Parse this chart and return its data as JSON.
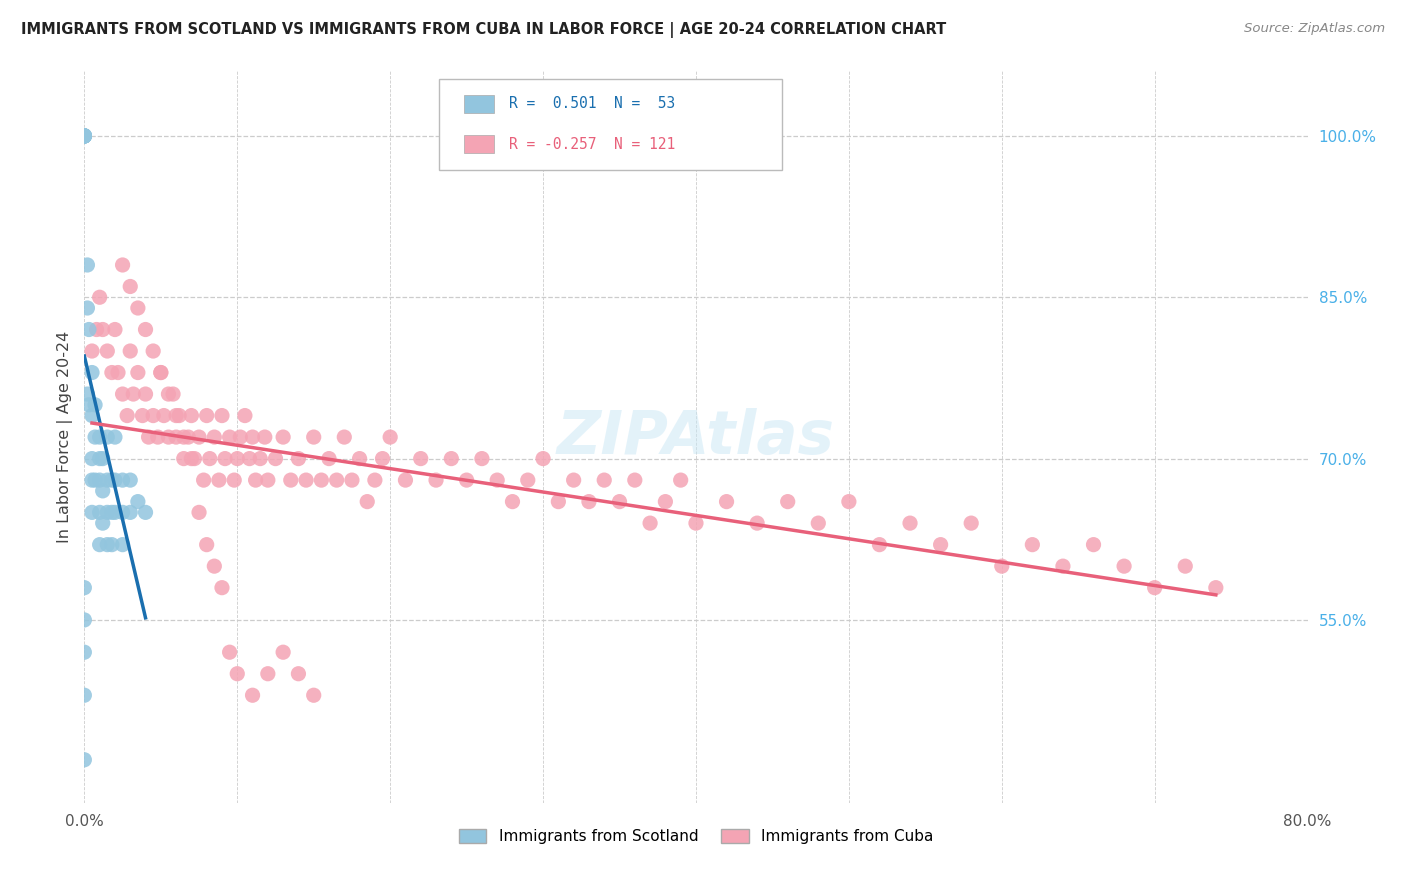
{
  "title": "IMMIGRANTS FROM SCOTLAND VS IMMIGRANTS FROM CUBA IN LABOR FORCE | AGE 20-24 CORRELATION CHART",
  "source": "Source: ZipAtlas.com",
  "ylabel": "In Labor Force | Age 20-24",
  "legend_label1": "Immigrants from Scotland",
  "legend_label2": "Immigrants from Cuba",
  "R1": 0.501,
  "N1": 53,
  "R2": -0.257,
  "N2": 121,
  "scotland_color": "#92c5de",
  "cuba_color": "#f4a4b4",
  "scotland_line_color": "#1a6faf",
  "cuba_line_color": "#e8607a",
  "right_tick_color": "#4ab0e8",
  "xlim": [
    0.0,
    0.8
  ],
  "ylim": [
    0.38,
    1.06
  ],
  "yticks": [
    1.0,
    0.85,
    0.7,
    0.55
  ],
  "ytick_labels": [
    "100.0%",
    "85.0%",
    "70.0%",
    "55.0%"
  ],
  "xticks": [
    0.0,
    0.8
  ],
  "xtick_labels": [
    "0.0%",
    "80.0%"
  ],
  "scotland_x": [
    0.0,
    0.0,
    0.0,
    0.0,
    0.0,
    0.0,
    0.0,
    0.0,
    0.0,
    0.0,
    0.002,
    0.002,
    0.002,
    0.003,
    0.003,
    0.005,
    0.005,
    0.005,
    0.005,
    0.005,
    0.007,
    0.007,
    0.007,
    0.01,
    0.01,
    0.01,
    0.01,
    0.01,
    0.012,
    0.012,
    0.012,
    0.015,
    0.015,
    0.015,
    0.015,
    0.018,
    0.018,
    0.018,
    0.02,
    0.02,
    0.02,
    0.025,
    0.025,
    0.025,
    0.03,
    0.03,
    0.035,
    0.04,
    0.0,
    0.0,
    0.0,
    0.0,
    0.0
  ],
  "scotland_y": [
    1.0,
    1.0,
    1.0,
    1.0,
    1.0,
    1.0,
    1.0,
    1.0,
    1.0,
    1.0,
    0.88,
    0.84,
    0.76,
    0.82,
    0.75,
    0.78,
    0.74,
    0.7,
    0.68,
    0.65,
    0.75,
    0.72,
    0.68,
    0.72,
    0.7,
    0.68,
    0.65,
    0.62,
    0.7,
    0.67,
    0.64,
    0.72,
    0.68,
    0.65,
    0.62,
    0.68,
    0.65,
    0.62,
    0.72,
    0.68,
    0.65,
    0.68,
    0.65,
    0.62,
    0.68,
    0.65,
    0.66,
    0.65,
    0.58,
    0.55,
    0.52,
    0.48,
    0.42
  ],
  "cuba_x": [
    0.005,
    0.008,
    0.01,
    0.012,
    0.015,
    0.018,
    0.02,
    0.022,
    0.025,
    0.028,
    0.03,
    0.032,
    0.035,
    0.038,
    0.04,
    0.042,
    0.045,
    0.048,
    0.05,
    0.052,
    0.055,
    0.058,
    0.06,
    0.062,
    0.065,
    0.068,
    0.07,
    0.072,
    0.075,
    0.078,
    0.08,
    0.082,
    0.085,
    0.088,
    0.09,
    0.092,
    0.095,
    0.098,
    0.1,
    0.102,
    0.105,
    0.108,
    0.11,
    0.112,
    0.115,
    0.118,
    0.12,
    0.125,
    0.13,
    0.135,
    0.14,
    0.145,
    0.15,
    0.155,
    0.16,
    0.165,
    0.17,
    0.175,
    0.18,
    0.185,
    0.19,
    0.195,
    0.2,
    0.21,
    0.22,
    0.23,
    0.24,
    0.25,
    0.26,
    0.27,
    0.28,
    0.29,
    0.3,
    0.31,
    0.32,
    0.33,
    0.34,
    0.35,
    0.36,
    0.37,
    0.38,
    0.39,
    0.4,
    0.42,
    0.44,
    0.46,
    0.48,
    0.5,
    0.52,
    0.54,
    0.56,
    0.58,
    0.6,
    0.62,
    0.64,
    0.66,
    0.68,
    0.7,
    0.72,
    0.74,
    0.025,
    0.03,
    0.035,
    0.04,
    0.045,
    0.05,
    0.055,
    0.06,
    0.065,
    0.07,
    0.075,
    0.08,
    0.085,
    0.09,
    0.095,
    0.1,
    0.11,
    0.12,
    0.13,
    0.14,
    0.15
  ],
  "cuba_y": [
    0.8,
    0.82,
    0.85,
    0.82,
    0.8,
    0.78,
    0.82,
    0.78,
    0.76,
    0.74,
    0.8,
    0.76,
    0.78,
    0.74,
    0.76,
    0.72,
    0.74,
    0.72,
    0.78,
    0.74,
    0.72,
    0.76,
    0.72,
    0.74,
    0.7,
    0.72,
    0.74,
    0.7,
    0.72,
    0.68,
    0.74,
    0.7,
    0.72,
    0.68,
    0.74,
    0.7,
    0.72,
    0.68,
    0.7,
    0.72,
    0.74,
    0.7,
    0.72,
    0.68,
    0.7,
    0.72,
    0.68,
    0.7,
    0.72,
    0.68,
    0.7,
    0.68,
    0.72,
    0.68,
    0.7,
    0.68,
    0.72,
    0.68,
    0.7,
    0.66,
    0.68,
    0.7,
    0.72,
    0.68,
    0.7,
    0.68,
    0.7,
    0.68,
    0.7,
    0.68,
    0.66,
    0.68,
    0.7,
    0.66,
    0.68,
    0.66,
    0.68,
    0.66,
    0.68,
    0.64,
    0.66,
    0.68,
    0.64,
    0.66,
    0.64,
    0.66,
    0.64,
    0.66,
    0.62,
    0.64,
    0.62,
    0.64,
    0.6,
    0.62,
    0.6,
    0.62,
    0.6,
    0.58,
    0.6,
    0.58,
    0.88,
    0.86,
    0.84,
    0.82,
    0.8,
    0.78,
    0.76,
    0.74,
    0.72,
    0.7,
    0.65,
    0.62,
    0.6,
    0.58,
    0.52,
    0.5,
    0.48,
    0.5,
    0.52,
    0.5,
    0.48
  ]
}
